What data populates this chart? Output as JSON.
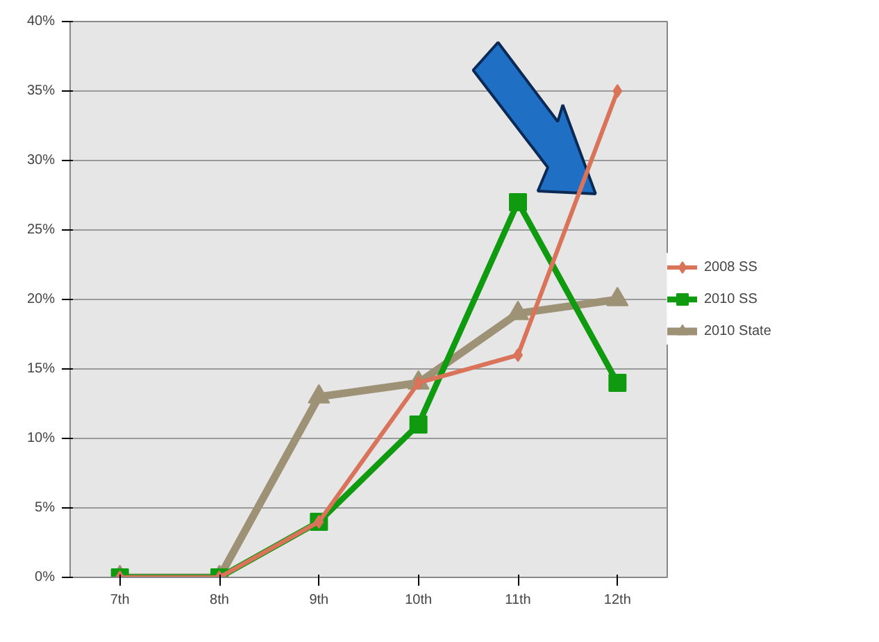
{
  "chart_data": {
    "type": "line",
    "categories": [
      "7th",
      "8th",
      "9th",
      "10th",
      "11th",
      "12th"
    ],
    "series": [
      {
        "name": "2008 SS",
        "color": "#d9735a",
        "marker": "diamond",
        "values": [
          0,
          0,
          4,
          14,
          16,
          35
        ]
      },
      {
        "name": "2010 SS",
        "color": "#0f9a0f",
        "marker": "square",
        "values": [
          0,
          0,
          4,
          11,
          27,
          14
        ]
      },
      {
        "name": "2010 State",
        "color": "#9e9276",
        "marker": "triangle",
        "values": [
          0,
          0,
          13,
          14,
          19,
          20
        ]
      }
    ],
    "ylim": [
      0,
      40
    ],
    "yticks": [
      {
        "value": 0,
        "label": "0%"
      },
      {
        "value": 5,
        "label": "5%"
      },
      {
        "value": 10,
        "label": "10%"
      },
      {
        "value": 15,
        "label": "15%"
      },
      {
        "value": 20,
        "label": "20%"
      },
      {
        "value": 25,
        "label": "25%"
      },
      {
        "value": 30,
        "label": "30%"
      },
      {
        "value": 35,
        "label": "35%"
      },
      {
        "value": 40,
        "label": "40%"
      }
    ],
    "grid": "y",
    "legend": "right",
    "line_style": "solid"
  }
}
